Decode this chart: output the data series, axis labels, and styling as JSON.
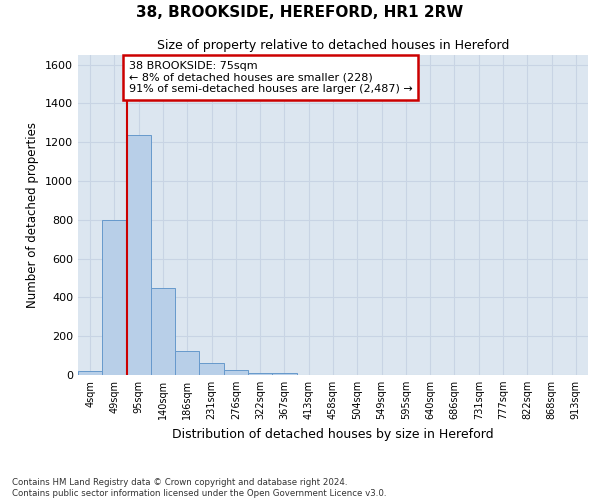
{
  "title_line1": "38, BROOKSIDE, HEREFORD, HR1 2RW",
  "title_line2": "Size of property relative to detached houses in Hereford",
  "xlabel": "Distribution of detached houses by size in Hereford",
  "ylabel": "Number of detached properties",
  "categories": [
    "4sqm",
    "49sqm",
    "95sqm",
    "140sqm",
    "186sqm",
    "231sqm",
    "276sqm",
    "322sqm",
    "367sqm",
    "413sqm",
    "458sqm",
    "504sqm",
    "549sqm",
    "595sqm",
    "640sqm",
    "686sqm",
    "731sqm",
    "777sqm",
    "822sqm",
    "868sqm",
    "913sqm"
  ],
  "values": [
    20,
    800,
    1240,
    450,
    125,
    60,
    25,
    10,
    10,
    0,
    0,
    0,
    0,
    0,
    0,
    0,
    0,
    0,
    0,
    0,
    0
  ],
  "bar_color": "#b8cfe8",
  "bar_edge_color": "#6699cc",
  "property_line_x": 1.5,
  "annotation_text_line1": "38 BROOKSIDE: 75sqm",
  "annotation_text_line2": "← 8% of detached houses are smaller (228)",
  "annotation_text_line3": "91% of semi-detached houses are larger (2,487) →",
  "annotation_box_color": "#ffffff",
  "annotation_box_edge_color": "#cc0000",
  "vline_color": "#cc0000",
  "ylim": [
    0,
    1650
  ],
  "yticks": [
    0,
    200,
    400,
    600,
    800,
    1000,
    1200,
    1400,
    1600
  ],
  "grid_color": "#c8d4e4",
  "bg_color": "#dce6f0",
  "footer_line1": "Contains HM Land Registry data © Crown copyright and database right 2024.",
  "footer_line2": "Contains public sector information licensed under the Open Government Licence v3.0."
}
